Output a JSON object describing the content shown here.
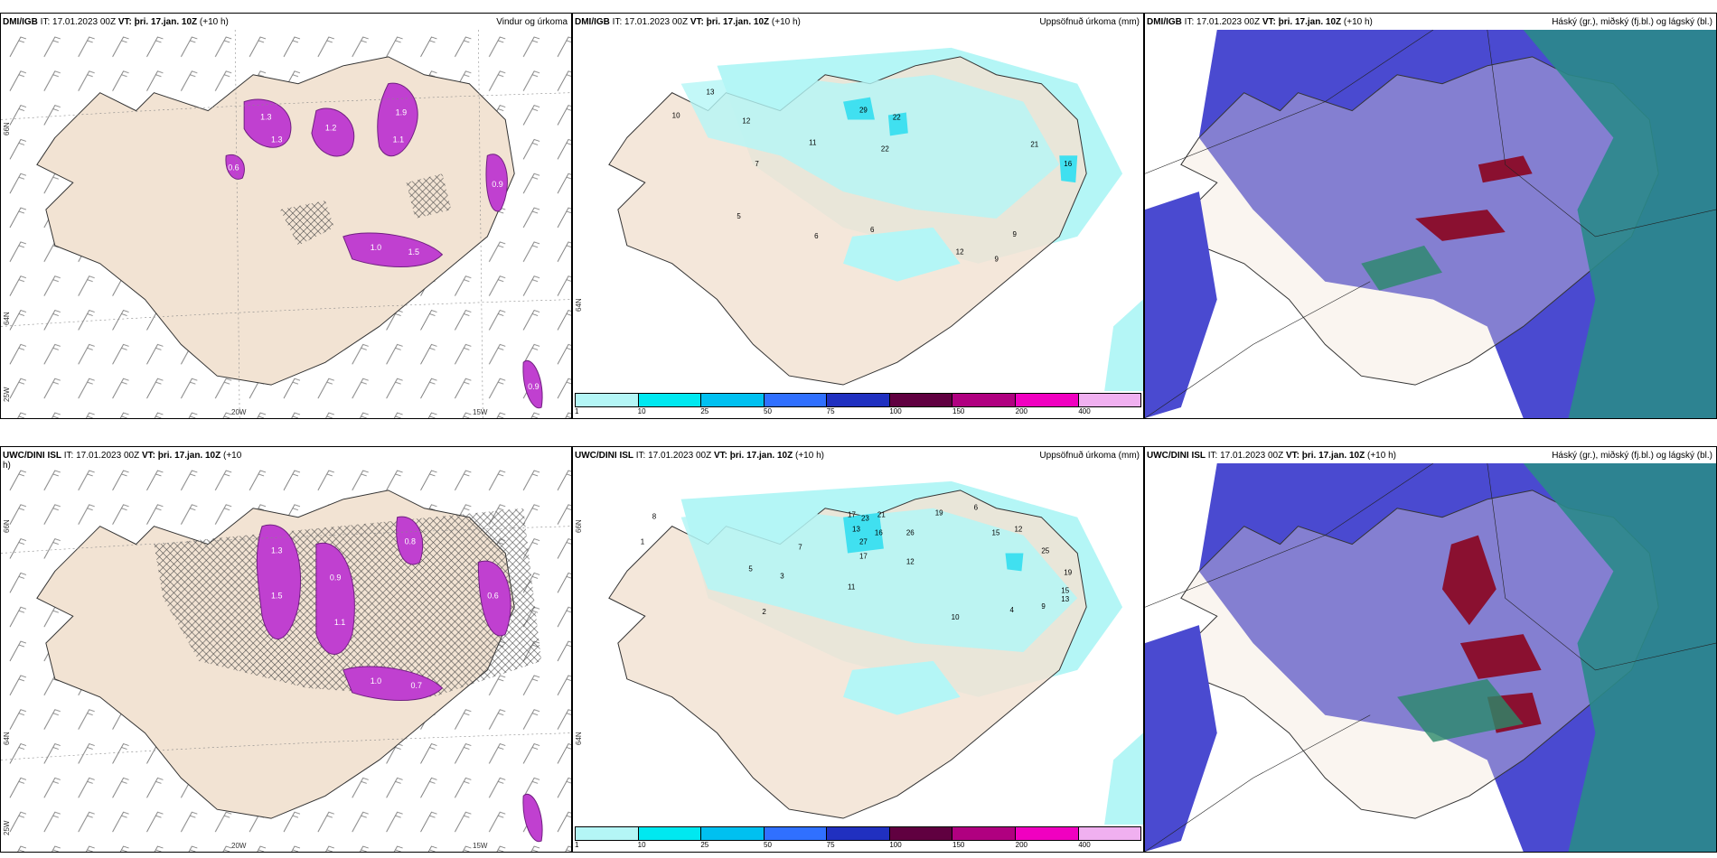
{
  "panels": {
    "dmi_wind": {
      "model": "DMI/IGB",
      "it_label": "IT:",
      "it_value": "17.01.2023 00Z",
      "vt_label": "VT: þri. 17.jan. 10Z",
      "lead": "(+10 h)",
      "title": "Vindur og úrkoma",
      "lat_labels": [
        "66N",
        "64N",
        "25W"
      ],
      "lon_labels": [
        "20W",
        "15W"
      ],
      "precip_labels": [
        "1.3",
        "1.2",
        "1.9",
        "1.0",
        "0.9",
        "1.5",
        "0.6",
        "1.1",
        "1.3",
        "0.9"
      ]
    },
    "dmi_accum": {
      "model": "DMI/IGB",
      "it_label": "IT:",
      "it_value": "17.01.2023 00Z",
      "vt_label": "VT: þri. 17.jan. 10Z",
      "lead": "(+10 h)",
      "title": "Uppsöfnuð úrkoma (mm)",
      "lat_label": "64N",
      "values": [
        "13",
        "10",
        "12",
        "29",
        "22",
        "11",
        "22",
        "7",
        "21",
        "16",
        "5",
        "6",
        "6",
        "9",
        "12",
        "9"
      ]
    },
    "dmi_cloud": {
      "model": "DMI/IGB",
      "it_label": "IT:",
      "it_value": "17.01.2023 00Z",
      "vt_label": "VT: þri. 17.jan. 10Z",
      "lead": "(+10 h)",
      "title": "Háský (gr.), miðský (fj.bl.) og lágský (bl.)"
    },
    "uwc_wind": {
      "model": "UWC/DINI ISL",
      "it_label": "IT:",
      "it_value": "17.01.2023 00Z",
      "vt_label": "VT: þri. 17.jan. 10Z",
      "lead": "(+10",
      "lead2": "h)",
      "lat_labels": [
        "66N",
        "64N",
        "25W"
      ],
      "lon_labels": [
        "20W",
        "15W"
      ],
      "precip_labels": [
        "1.3",
        "0.9",
        "1.0",
        "0.6",
        "0.8",
        "1.5",
        "1.1",
        "0.7"
      ]
    },
    "uwc_accum": {
      "model": "UWC/DINI ISL",
      "it_label": "IT:",
      "it_value": "17.01.2023 00Z",
      "vt_label": "VT: þri. 17.jan. 10Z",
      "lead": "(+10 h)",
      "title": "Uppsöfnuð úrkoma (mm)",
      "lat_labels": [
        "66N",
        "64N"
      ],
      "values": [
        "17",
        "23",
        "21",
        "16",
        "19",
        "6",
        "15",
        "12",
        "13",
        "27",
        "17",
        "26",
        "25",
        "19",
        "15",
        "13",
        "10",
        "11",
        "12",
        "8",
        "7",
        "5",
        "3",
        "4",
        "2",
        "1",
        "9"
      ]
    },
    "uwc_cloud": {
      "model": "UWC/DINI ISL",
      "it_label": "IT:",
      "it_value": "17.01.2023 00Z",
      "vt_label": "VT: þri. 17.jan. 10Z",
      "lead": "(+10 h)",
      "title": "Háský (gr.), miðský (fj.bl.) og lágský (bl.)"
    }
  },
  "legend": {
    "ticks": [
      "1",
      "10",
      "25",
      "50",
      "75",
      "100",
      "150",
      "200",
      "400"
    ],
    "colors": [
      "#b4f6f6",
      "#00e8f0",
      "#00c0f0",
      "#3070ff",
      "#2030c0",
      "#600040",
      "#b00080",
      "#f000c0",
      "#f0b0f0"
    ]
  },
  "colors": {
    "land": "#f2e3d3",
    "precip_magenta": "#c040d0",
    "accum_light": "#b4f6f6",
    "accum_mid": "#40e0f0",
    "high_cloud_blue": "#4a4ad0",
    "mid_cloud_teal": "#2a8a8a",
    "low_cloud_red": "#8a1030",
    "hatch": "#333333"
  }
}
